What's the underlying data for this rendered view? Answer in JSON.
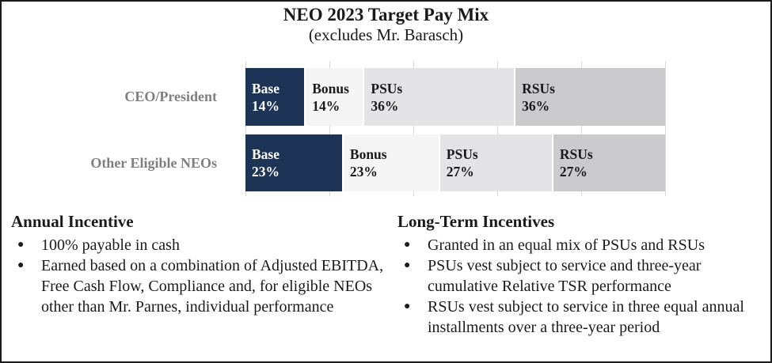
{
  "figure": {
    "title": "NEO 2023 Target Pay Mix",
    "subtitle": "(excludes Mr. Barasch)"
  },
  "colors": {
    "segment_base": "#1d3456",
    "segment_bonus": "#f5f5f6",
    "segment_psus": "#e4e4e6",
    "segment_rsus": "#cbcbcd",
    "segment_text_dark": "#1a1a1a",
    "segment_text_light": "#ffffff",
    "gridline": "#d9d9d9",
    "row_label": "#7f7f7f"
  },
  "chart_data": {
    "type": "bar",
    "orientation": "horizontal",
    "stacked": true,
    "units": "%",
    "title": "NEO 2023 Target Pay Mix (excludes Mr. Barasch)",
    "categories": [
      "CEO/President",
      "Other Eligible NEOs"
    ],
    "series": [
      {
        "name": "Base",
        "color_key": "segment_base",
        "text": "light",
        "values": [
          14,
          23
        ]
      },
      {
        "name": "Bonus",
        "color_key": "segment_bonus",
        "text": "dark",
        "values": [
          14,
          23
        ]
      },
      {
        "name": "PSUs",
        "color_key": "segment_psus",
        "text": "dark",
        "values": [
          36,
          27
        ]
      },
      {
        "name": "RSUs",
        "color_key": "segment_rsus",
        "text": "dark",
        "values": [
          36,
          27
        ]
      }
    ],
    "xlim": [
      0,
      100
    ],
    "gridline_ticks": [
      0,
      20,
      40,
      60,
      80,
      100
    ],
    "grid": true,
    "legend": "none",
    "value_labels": "segment name and percent shown inside each segment"
  },
  "notes": {
    "annual_incentive": {
      "heading": "Annual Incentive",
      "bullets": [
        "100% payable in cash",
        "Earned based on a combination of Adjusted EBITDA, Free Cash Flow, Compliance and, for eligible NEOs other than Mr. Parnes, individual performance"
      ]
    },
    "long_term_incentives": {
      "heading": "Long-Term Incentives",
      "bullets": [
        "Granted in an equal mix of PSUs and RSUs",
        "PSUs vest subject to service and three-year cumulative Relative TSR performance",
        "RSUs vest subject to service in three equal annual installments over a three-year period"
      ]
    }
  }
}
